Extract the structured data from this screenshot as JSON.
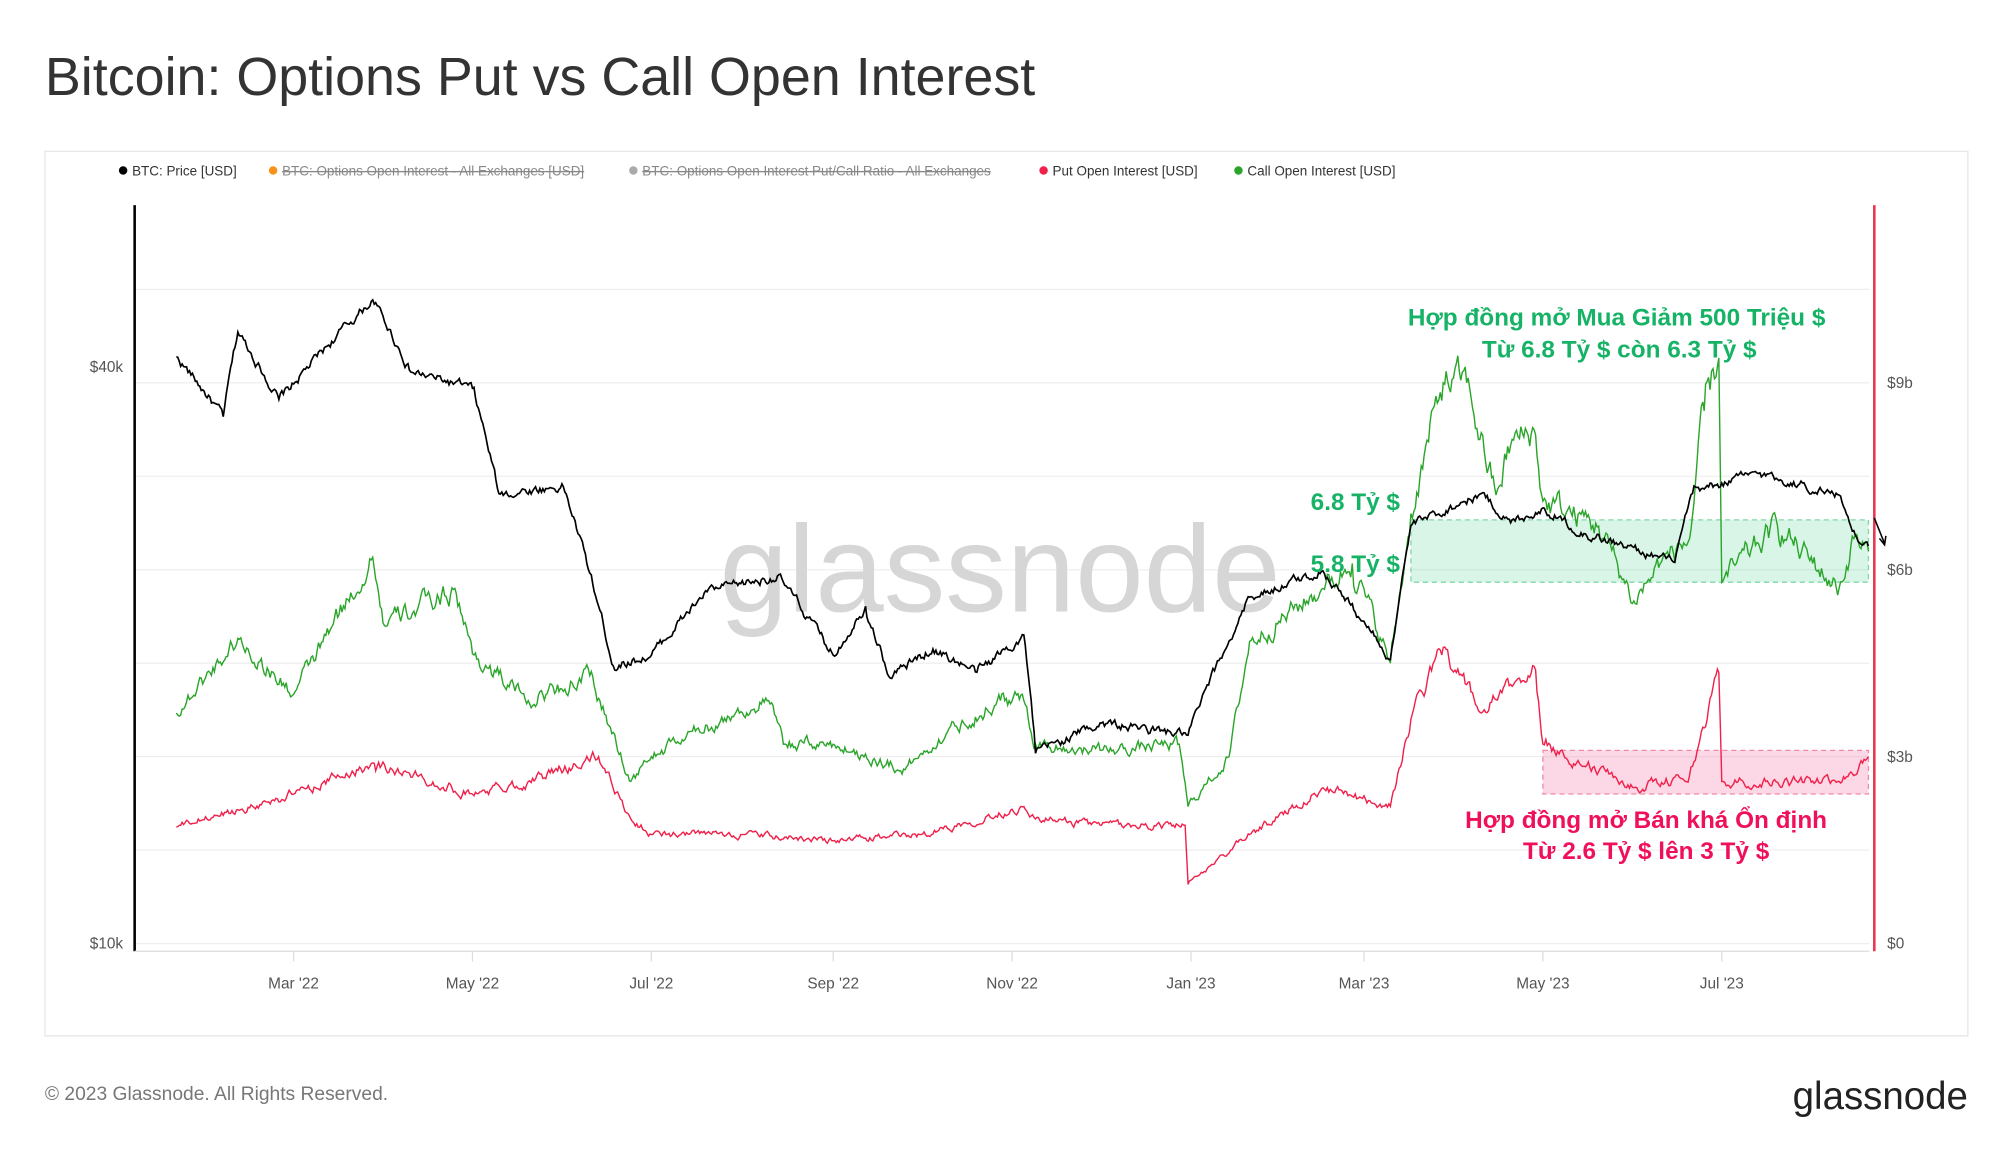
{
  "title": "Bitcoin: Options Put vs Call Open Interest",
  "footer": {
    "copyright": "© 2023 Glassnode. All Rights Reserved.",
    "logo": "glassnode"
  },
  "watermark": "glassnode",
  "colors": {
    "price": "#000000",
    "put": "#f0204a",
    "call": "#2aa52a",
    "oi": "#f7931a",
    "ratio": "#aaaaaa",
    "annotation_green": "#16b366",
    "annotation_red": "#f0105a",
    "right_axis": "#e8364f"
  },
  "chart_data": {
    "type": "line",
    "title": "Bitcoin: Options Put vs Call Open Interest",
    "legend": [
      {
        "label": "BTC: Price [USD]",
        "color": "#000000",
        "hidden": false
      },
      {
        "label": "BTC: Options Open Interest - All Exchanges [USD]",
        "color": "#f7931a",
        "hidden": true
      },
      {
        "label": "BTC: Options Open Interest Put/Call Ratio - All Exchanges",
        "color": "#aaaaaa",
        "hidden": true
      },
      {
        "label": "Put Open Interest [USD]",
        "color": "#f0204a",
        "hidden": false
      },
      {
        "label": "Call Open Interest [USD]",
        "color": "#2aa52a",
        "hidden": false
      }
    ],
    "legend_position": "top-left",
    "x_ticks": [
      "Mar '22",
      "May '22",
      "Jul '22",
      "Sep '22",
      "Nov '22",
      "Jan '23",
      "Mar '23",
      "May '23",
      "Jul '23"
    ],
    "x_tick_dates": [
      "2022-03-01",
      "2022-05-01",
      "2022-07-01",
      "2022-09-01",
      "2022-11-01",
      "2023-01-01",
      "2023-03-01",
      "2023-05-01",
      "2023-07-01"
    ],
    "y_left": {
      "scale": "log",
      "ticks": [
        "$10k",
        "$40k"
      ],
      "tick_values": [
        10000,
        40000
      ]
    },
    "y_right": {
      "scale": "linear",
      "ticks": [
        "$0",
        "$3b",
        "$6b",
        "$9b"
      ],
      "tick_values": [
        0,
        3,
        6,
        9
      ],
      "unit": "billion USD"
    },
    "grid": true,
    "series": [
      {
        "name": "BTC: Price [USD]",
        "axis": "left",
        "points": [
          [
            "2022-01-20",
            41000
          ],
          [
            "2022-02-05",
            35500
          ],
          [
            "2022-02-10",
            43500
          ],
          [
            "2022-02-24",
            37000
          ],
          [
            "2022-03-01",
            38400
          ],
          [
            "2022-03-28",
            47000
          ],
          [
            "2022-04-10",
            39500
          ],
          [
            "2022-05-01",
            38000
          ],
          [
            "2022-05-10",
            29500
          ],
          [
            "2022-06-01",
            30000
          ],
          [
            "2022-06-13",
            22500
          ],
          [
            "2022-06-18",
            19500
          ],
          [
            "2022-07-01",
            20000
          ],
          [
            "2022-07-20",
            23300
          ],
          [
            "2022-08-13",
            24200
          ],
          [
            "2022-09-01",
            20000
          ],
          [
            "2022-09-12",
            22500
          ],
          [
            "2022-09-20",
            19000
          ],
          [
            "2022-10-05",
            20300
          ],
          [
            "2022-10-20",
            19200
          ],
          [
            "2022-11-05",
            21000
          ],
          [
            "2022-11-09",
            15800
          ],
          [
            "2022-12-01",
            17000
          ],
          [
            "2022-12-31",
            16500
          ],
          [
            "2023-01-14",
            20700
          ],
          [
            "2023-01-21",
            23000
          ],
          [
            "2023-02-15",
            24500
          ],
          [
            "2023-03-10",
            19800
          ],
          [
            "2023-03-17",
            27300
          ],
          [
            "2023-04-10",
            29500
          ],
          [
            "2023-04-20",
            27500
          ],
          [
            "2023-05-01",
            28500
          ],
          [
            "2023-05-15",
            26800
          ],
          [
            "2023-06-15",
            25000
          ],
          [
            "2023-06-21",
            29500
          ],
          [
            "2023-07-13",
            31000
          ],
          [
            "2023-08-10",
            29400
          ],
          [
            "2023-08-17",
            26200
          ],
          [
            "2023-08-20",
            26000
          ]
        ]
      },
      {
        "name": "Call Open Interest [USD]",
        "axis": "right",
        "points": [
          [
            "2022-01-20",
            3.7
          ],
          [
            "2022-02-10",
            4.9
          ],
          [
            "2022-03-01",
            4.0
          ],
          [
            "2022-03-28",
            6.2
          ],
          [
            "2022-04-01",
            5.1
          ],
          [
            "2022-04-25",
            5.7
          ],
          [
            "2022-05-01",
            4.65
          ],
          [
            "2022-05-20",
            3.9
          ],
          [
            "2022-06-10",
            4.3
          ],
          [
            "2022-06-24",
            2.6
          ],
          [
            "2022-07-01",
            3.0
          ],
          [
            "2022-07-20",
            3.5
          ],
          [
            "2022-08-10",
            3.9
          ],
          [
            "2022-08-15",
            3.2
          ],
          [
            "2022-09-01",
            3.2
          ],
          [
            "2022-09-25",
            2.8
          ],
          [
            "2022-10-10",
            3.4
          ],
          [
            "2022-10-28",
            3.9
          ],
          [
            "2022-11-05",
            3.9
          ],
          [
            "2022-11-09",
            3.2
          ],
          [
            "2022-12-01",
            3.1
          ],
          [
            "2022-12-28",
            3.2
          ],
          [
            "2022-12-31",
            2.2
          ],
          [
            "2023-01-14",
            3.0
          ],
          [
            "2023-01-21",
            4.85
          ],
          [
            "2023-02-15",
            5.7
          ],
          [
            "2023-02-25",
            6.1
          ],
          [
            "2023-03-10",
            4.5
          ],
          [
            "2023-03-17",
            6.9
          ],
          [
            "2023-03-28",
            9.0
          ],
          [
            "2023-04-05",
            9.0
          ],
          [
            "2023-04-15",
            7.2
          ],
          [
            "2023-04-20",
            8.0
          ],
          [
            "2023-04-28",
            8.25
          ],
          [
            "2023-05-01",
            7.1
          ],
          [
            "2023-05-20",
            6.7
          ],
          [
            "2023-06-01",
            5.5
          ],
          [
            "2023-06-10",
            6.1
          ],
          [
            "2023-06-20",
            6.5
          ],
          [
            "2023-06-25",
            8.55
          ],
          [
            "2023-06-30",
            9.4
          ],
          [
            "2023-07-01",
            5.8
          ],
          [
            "2023-07-20",
            6.7
          ],
          [
            "2023-08-01",
            6.1
          ],
          [
            "2023-08-10",
            5.7
          ],
          [
            "2023-08-15",
            6.5
          ],
          [
            "2023-08-20",
            6.3
          ]
        ]
      },
      {
        "name": "Put Open Interest [USD]",
        "axis": "right",
        "points": [
          [
            "2022-01-20",
            1.87
          ],
          [
            "2022-03-01",
            2.4
          ],
          [
            "2022-03-28",
            2.9
          ],
          [
            "2022-05-01",
            2.4
          ],
          [
            "2022-05-20",
            2.6
          ],
          [
            "2022-06-13",
            3.0
          ],
          [
            "2022-06-24",
            2.0
          ],
          [
            "2022-07-01",
            1.75
          ],
          [
            "2022-08-01",
            1.75
          ],
          [
            "2022-09-01",
            1.65
          ],
          [
            "2022-10-01",
            1.75
          ],
          [
            "2022-11-05",
            2.2
          ],
          [
            "2022-11-09",
            2.0
          ],
          [
            "2022-12-01",
            1.9
          ],
          [
            "2022-12-30",
            1.9
          ],
          [
            "2022-12-31",
            0.95
          ],
          [
            "2023-01-21",
            1.75
          ],
          [
            "2023-02-15",
            2.5
          ],
          [
            "2023-03-10",
            2.2
          ],
          [
            "2023-03-17",
            3.6
          ],
          [
            "2023-03-28",
            4.75
          ],
          [
            "2023-04-10",
            3.7
          ],
          [
            "2023-04-28",
            4.45
          ],
          [
            "2023-05-01",
            3.2
          ],
          [
            "2023-06-01",
            2.5
          ],
          [
            "2023-06-20",
            2.7
          ],
          [
            "2023-06-30",
            4.35
          ],
          [
            "2023-07-01",
            2.6
          ],
          [
            "2023-08-10",
            2.6
          ],
          [
            "2023-08-20",
            3.0
          ]
        ]
      }
    ],
    "annotations": {
      "call_band": {
        "from": "2023-03-17",
        "to": "2023-08-20",
        "low": 5.8,
        "high": 6.8,
        "label_high": "6.8 Tỷ $",
        "label_low": "5.8 Tỷ $"
      },
      "put_band": {
        "from": "2023-05-01",
        "to": "2023-08-20",
        "low": 2.4,
        "high": 3.1
      },
      "call_text": [
        "Hợp đồng mở Mua Giảm 500 Triệu $",
        "Từ 6.8 Tỷ $ còn 6.3 Tỷ $"
      ],
      "put_text": [
        "Hợp đồng mở Bán khá Ổn định",
        "Từ 2.6 Tỷ $ lên 3 Tỷ $"
      ]
    }
  }
}
